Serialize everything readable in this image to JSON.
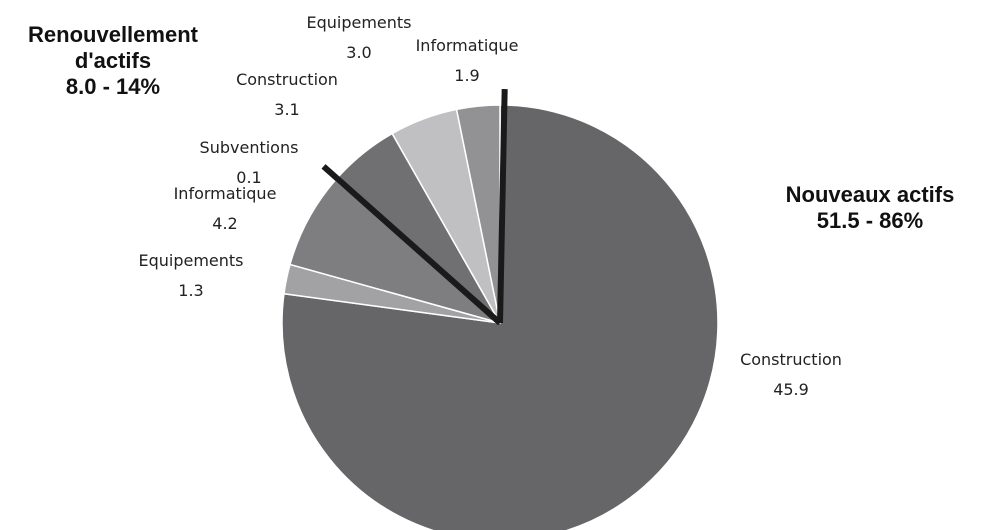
{
  "chart_data": {
    "type": "pie",
    "categories": [
      "Construction",
      "Equipements",
      "Informatique",
      "Subventions",
      "Construction",
      "Equipements",
      "Informatique"
    ],
    "values": [
      45.9,
      1.3,
      4.2,
      0.1,
      3.1,
      3.0,
      1.9
    ],
    "value_labels": [
      "45.9",
      "1.3",
      "4.2",
      "0.1",
      "3.1",
      "3.0",
      "1.9"
    ],
    "colors": [
      "#666668",
      "#a2a2a4",
      "#7e7e80",
      "#4a4a4c",
      "#707072",
      "#c0c0c2",
      "#929294"
    ],
    "groups": [
      {
        "name": "Nouveaux actifs",
        "value": 51.5,
        "value_label": "51.5  -  86%"
      },
      {
        "name": "Renouvellement d'actifs",
        "value": 8.0,
        "value_label": "8.0  -  14%"
      }
    ]
  }
}
